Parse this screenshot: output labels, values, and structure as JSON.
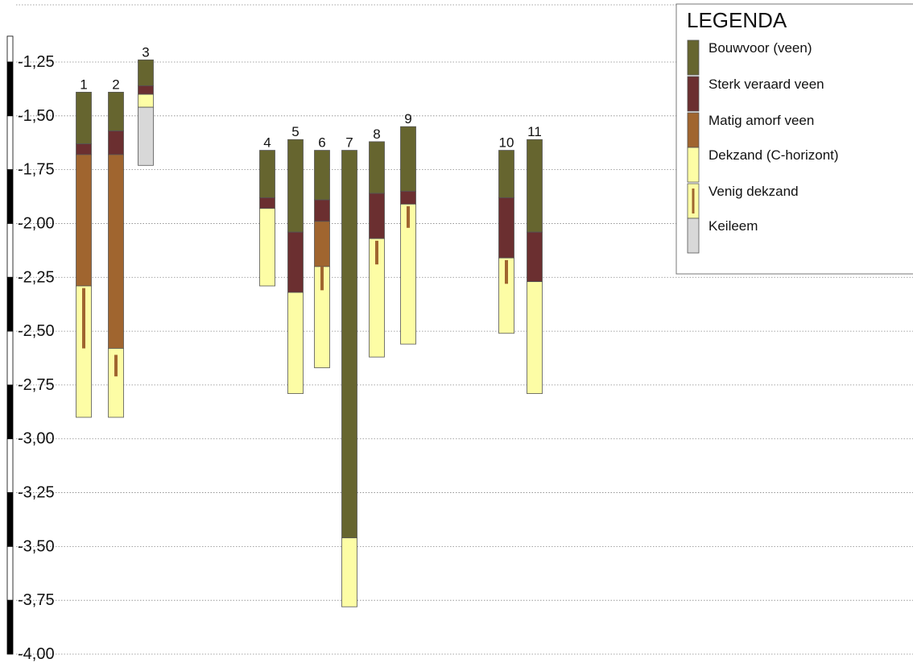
{
  "colors": {
    "bouwvoor": "#66652f",
    "sterk": "#6b2f30",
    "matig": "#a0652f",
    "dekzand": "#fdfda5",
    "venig_line": "#a0652f",
    "keileem": "#d8d8d8",
    "gridline": "#888888",
    "outline": "#555555"
  },
  "legend": {
    "title": "LEGENDA",
    "items": [
      {
        "label": "Bouwvoor (veen)",
        "color_key": "bouwvoor"
      },
      {
        "label": "Sterk veraard veen",
        "color_key": "sterk"
      },
      {
        "label": "Matig amorf veen",
        "color_key": "matig"
      },
      {
        "label": "Dekzand (C-horizont)",
        "color_key": "dekzand"
      },
      {
        "label": "Venig dekzand",
        "color_key": "venig"
      },
      {
        "label": "Keileem",
        "color_key": "keileem"
      }
    ]
  },
  "axis": {
    "ticks": [
      {
        "value": -1.25,
        "label": "-1,25"
      },
      {
        "value": -1.5,
        "label": "-1,50"
      },
      {
        "value": -1.75,
        "label": "-1,75"
      },
      {
        "value": -2.0,
        "label": "-2,00"
      },
      {
        "value": -2.25,
        "label": "-2,25"
      },
      {
        "value": -2.5,
        "label": "-2,50"
      },
      {
        "value": -2.75,
        "label": "-2,75"
      },
      {
        "value": -3.0,
        "label": "-3,00"
      },
      {
        "value": -3.25,
        "label": "-3,25"
      },
      {
        "value": -3.5,
        "label": "-3,50"
      },
      {
        "value": -3.75,
        "label": "-3,75"
      },
      {
        "value": -4.0,
        "label": "-4,00"
      }
    ],
    "range": [
      -1.13,
      -4.0
    ]
  },
  "borings": [
    {
      "label": "1",
      "layers": [
        {
          "type": "bouwvoor",
          "top": -1.39,
          "bottom": -1.63
        },
        {
          "type": "sterk",
          "top": -1.63,
          "bottom": -1.68
        },
        {
          "type": "matig",
          "top": -1.68,
          "bottom": -2.29
        },
        {
          "type": "dekzand",
          "top": -2.29,
          "bottom": -2.9
        }
      ],
      "venig": [
        {
          "top": -2.3,
          "bottom": -2.58
        }
      ]
    },
    {
      "label": "2",
      "layers": [
        {
          "type": "bouwvoor",
          "top": -1.39,
          "bottom": -1.57
        },
        {
          "type": "sterk",
          "top": -1.57,
          "bottom": -1.68
        },
        {
          "type": "matig",
          "top": -1.68,
          "bottom": -2.58
        },
        {
          "type": "dekzand",
          "top": -2.58,
          "bottom": -2.9
        }
      ],
      "venig": [
        {
          "top": -2.61,
          "bottom": -2.71
        }
      ]
    },
    {
      "label": "3",
      "layers": [
        {
          "type": "bouwvoor",
          "top": -1.24,
          "bottom": -1.36
        },
        {
          "type": "sterk",
          "top": -1.36,
          "bottom": -1.4
        },
        {
          "type": "dekzand",
          "top": -1.4,
          "bottom": -1.46
        },
        {
          "type": "keileem",
          "top": -1.46,
          "bottom": -1.73
        }
      ],
      "venig": []
    },
    {
      "label": "4",
      "layers": [
        {
          "type": "bouwvoor",
          "top": -1.66,
          "bottom": -1.88
        },
        {
          "type": "sterk",
          "top": -1.88,
          "bottom": -1.93
        },
        {
          "type": "dekzand",
          "top": -1.93,
          "bottom": -2.29
        }
      ],
      "venig": []
    },
    {
      "label": "5",
      "layers": [
        {
          "type": "bouwvoor",
          "top": -1.61,
          "bottom": -2.04
        },
        {
          "type": "sterk",
          "top": -2.04,
          "bottom": -2.32
        },
        {
          "type": "dekzand",
          "top": -2.32,
          "bottom": -2.79
        }
      ],
      "venig": []
    },
    {
      "label": "6",
      "layers": [
        {
          "type": "bouwvoor",
          "top": -1.66,
          "bottom": -1.89
        },
        {
          "type": "sterk",
          "top": -1.89,
          "bottom": -1.99
        },
        {
          "type": "matig",
          "top": -1.99,
          "bottom": -2.2
        },
        {
          "type": "dekzand",
          "top": -2.2,
          "bottom": -2.67
        }
      ],
      "venig": [
        {
          "top": -2.2,
          "bottom": -2.31
        }
      ]
    },
    {
      "label": "7",
      "layers": [
        {
          "type": "bouwvoor",
          "top": -1.66,
          "bottom": -3.46
        },
        {
          "type": "dekzand",
          "top": -3.46,
          "bottom": -3.78
        }
      ],
      "venig": []
    },
    {
      "label": "8",
      "layers": [
        {
          "type": "bouwvoor",
          "top": -1.62,
          "bottom": -1.86
        },
        {
          "type": "sterk",
          "top": -1.86,
          "bottom": -2.07
        },
        {
          "type": "dekzand",
          "top": -2.07,
          "bottom": -2.62
        }
      ],
      "venig": [
        {
          "top": -2.08,
          "bottom": -2.19
        }
      ]
    },
    {
      "label": "9",
      "layers": [
        {
          "type": "bouwvoor",
          "top": -1.55,
          "bottom": -1.85
        },
        {
          "type": "sterk",
          "top": -1.85,
          "bottom": -1.91
        },
        {
          "type": "dekzand",
          "top": -1.91,
          "bottom": -2.56
        }
      ],
      "venig": [
        {
          "top": -1.92,
          "bottom": -2.02
        }
      ]
    },
    {
      "label": "10",
      "layers": [
        {
          "type": "bouwvoor",
          "top": -1.66,
          "bottom": -1.88
        },
        {
          "type": "sterk",
          "top": -1.88,
          "bottom": -2.16
        },
        {
          "type": "dekzand",
          "top": -2.16,
          "bottom": -2.51
        }
      ],
      "venig": [
        {
          "top": -2.17,
          "bottom": -2.28
        }
      ]
    },
    {
      "label": "11",
      "layers": [
        {
          "type": "bouwvoor",
          "top": -1.61,
          "bottom": -2.04
        },
        {
          "type": "sterk",
          "top": -2.04,
          "bottom": -2.27
        },
        {
          "type": "dekzand",
          "top": -2.27,
          "bottom": -2.79
        }
      ],
      "venig": []
    }
  ]
}
